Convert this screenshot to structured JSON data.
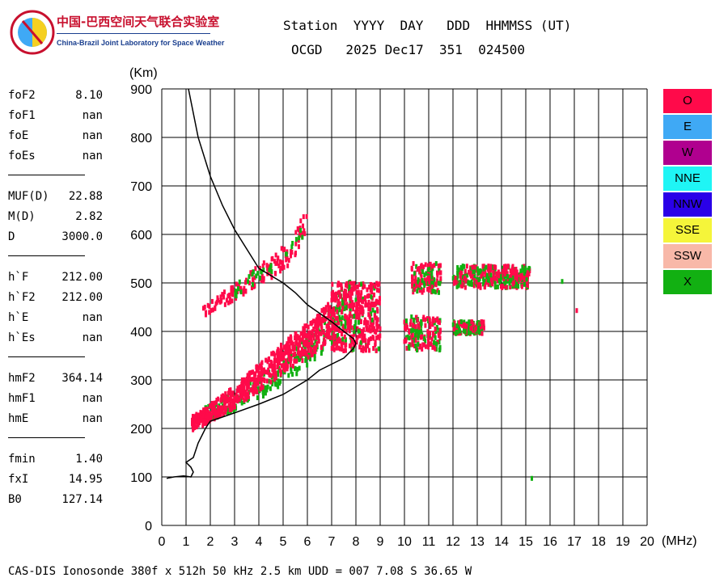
{
  "logo": {
    "cn": "中国-巴西空间天气联合实验室",
    "en": "China-Brazil Joint Laboratory for Space Weather"
  },
  "header": {
    "row1": "Station  YYYY  DAY   DDD  HHMMSS (UT)",
    "row2": "OCGD   2025 Dec17  351  024500"
  },
  "params": [
    {
      "group": [
        {
          "label": "foF2",
          "value": "8.10"
        },
        {
          "label": "foF1",
          "value": "nan"
        },
        {
          "label": "foE",
          "value": "nan"
        },
        {
          "label": "foEs",
          "value": "nan"
        }
      ]
    },
    {
      "group": [
        {
          "label": "MUF(D)",
          "value": "22.88"
        },
        {
          "label": "M(D)",
          "value": "2.82"
        },
        {
          "label": "D",
          "value": "3000.0"
        }
      ]
    },
    {
      "group": [
        {
          "label": "h`F",
          "value": "212.00"
        },
        {
          "label": "h`F2",
          "value": "212.00"
        },
        {
          "label": "h`E",
          "value": "nan"
        },
        {
          "label": "h`Es",
          "value": "nan"
        }
      ]
    },
    {
      "group": [
        {
          "label": "hmF2",
          "value": "364.14"
        },
        {
          "label": "hmF1",
          "value": "nan"
        },
        {
          "label": "hmE",
          "value": "nan"
        }
      ]
    },
    {
      "group": [
        {
          "label": "fmin",
          "value": "1.40"
        },
        {
          "label": "fxI",
          "value": "14.95"
        },
        {
          "label": "B0",
          "value": "127.14"
        }
      ]
    }
  ],
  "legend": [
    {
      "label": "O",
      "color": "#ff0a4a"
    },
    {
      "label": "E",
      "color": "#3fa9f5"
    },
    {
      "label": "W",
      "color": "#b0008f"
    },
    {
      "label": "NNE",
      "color": "#1ff5f5"
    },
    {
      "label": "NNW",
      "color": "#2a00e8"
    },
    {
      "label": "SSE",
      "color": "#f5f53a"
    },
    {
      "label": "SSW",
      "color": "#f8b8a8"
    },
    {
      "label": "X",
      "color": "#12b012"
    }
  ],
  "footer": "CAS-DIS Ionosonde 380f x 512h 50 kHz 2.5 km UDD = 007 7.08 S 36.65 W",
  "chart_data": {
    "type": "scatter",
    "xlabel": "(MHz)",
    "ylabel": "(Km)",
    "xlim": [
      0,
      20
    ],
    "ylim": [
      0,
      900
    ],
    "x_ticks": [
      0,
      1,
      2,
      3,
      4,
      5,
      6,
      7,
      8,
      9,
      10,
      11,
      12,
      13,
      14,
      15,
      16,
      17,
      18,
      19,
      20
    ],
    "y_ticks": [
      0,
      100,
      200,
      300,
      400,
      500,
      600,
      700,
      800,
      900
    ],
    "grid": true,
    "legend_position": "right",
    "ordinary_trace": [
      [
        1.25,
        210
      ],
      [
        1.6,
        220
      ],
      [
        2.0,
        232
      ],
      [
        2.5,
        248
      ],
      [
        3.0,
        265
      ],
      [
        3.5,
        285
      ],
      [
        4.0,
        305
      ],
      [
        4.5,
        325
      ],
      [
        5.0,
        345
      ],
      [
        5.5,
        365
      ],
      [
        6.0,
        380
      ],
      [
        6.5,
        400
      ],
      [
        7.0,
        425
      ],
      [
        7.3,
        455
      ],
      [
        7.6,
        490
      ],
      [
        7.9,
        480
      ],
      [
        8.2,
        440
      ],
      [
        8.5,
        420
      ],
      [
        8.8,
        410
      ]
    ],
    "ordinary_upper": [
      [
        1.7,
        440
      ],
      [
        2.3,
        460
      ],
      [
        3.0,
        480
      ],
      [
        3.8,
        510
      ],
      [
        4.5,
        530
      ],
      [
        5.2,
        560
      ],
      [
        5.7,
        600
      ],
      [
        6.0,
        625
      ]
    ],
    "extraordinary_trace": [
      [
        1.8,
        230
      ],
      [
        2.5,
        245
      ],
      [
        3.0,
        255
      ],
      [
        3.5,
        270
      ],
      [
        4.0,
        285
      ],
      [
        4.5,
        300
      ],
      [
        5.0,
        320
      ],
      [
        5.5,
        340
      ],
      [
        6.0,
        360
      ],
      [
        6.5,
        385
      ],
      [
        7.0,
        410
      ],
      [
        7.5,
        440
      ],
      [
        7.8,
        470
      ]
    ],
    "far_echoes": [
      {
        "x": [
          10.0,
          11.5
        ],
        "y": [
          360,
          430
        ]
      },
      {
        "x": [
          10.3,
          11.5
        ],
        "y": [
          480,
          540
        ]
      },
      {
        "x": [
          12.0,
          13.3
        ],
        "y": [
          395,
          420
        ]
      },
      {
        "x": [
          12.0,
          15.2
        ],
        "y": [
          490,
          535
        ]
      }
    ],
    "isolated_points": [
      [
        16.5,
        503
      ],
      [
        17.1,
        443
      ],
      [
        15.25,
        97
      ]
    ],
    "profile_curve": [
      [
        1.1,
        900
      ],
      [
        1.5,
        800
      ],
      [
        2.0,
        720
      ],
      [
        2.5,
        660
      ],
      [
        3.0,
        610
      ],
      [
        3.5,
        570
      ],
      [
        4.0,
        530
      ],
      [
        5.0,
        500
      ],
      [
        5.5,
        480
      ],
      [
        6.0,
        455
      ],
      [
        7.0,
        420
      ],
      [
        7.5,
        400
      ],
      [
        7.9,
        385
      ],
      [
        8.0,
        375
      ],
      [
        7.9,
        365
      ],
      [
        7.5,
        345
      ],
      [
        6.5,
        320
      ],
      [
        6.0,
        300
      ],
      [
        5.0,
        270
      ],
      [
        4.0,
        250
      ],
      [
        3.0,
        232
      ],
      [
        2.3,
        220
      ],
      [
        2.0,
        215
      ],
      [
        1.8,
        200
      ],
      [
        1.5,
        170
      ],
      [
        1.3,
        140
      ],
      [
        1.0,
        130
      ],
      [
        1.2,
        120
      ],
      [
        1.3,
        110
      ],
      [
        1.2,
        100
      ],
      [
        0.9,
        102
      ],
      [
        0.5,
        100
      ],
      [
        0.2,
        97
      ]
    ]
  }
}
